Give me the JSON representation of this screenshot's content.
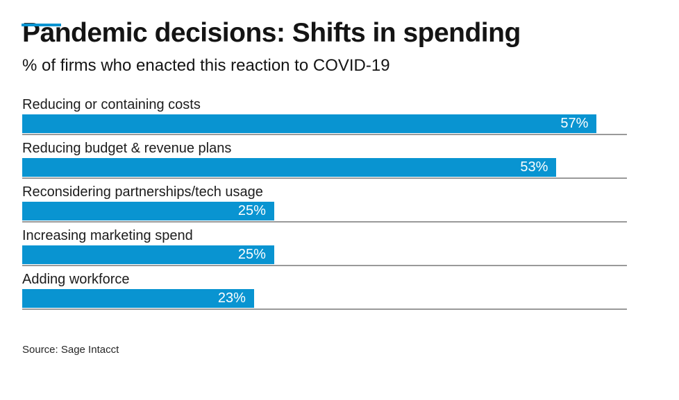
{
  "accent_color": "#0994d1",
  "header": {
    "title": "Pandemic decisions: Shifts in spending",
    "subtitle": "% of firms who enacted this reaction to COVID-19"
  },
  "chart_data": {
    "type": "bar",
    "orientation": "horizontal",
    "title": "Pandemic decisions: Shifts in spending",
    "subtitle": "% of firms who enacted this reaction to COVID-19",
    "categories": [
      "Reducing or containing costs",
      "Reducing budget & revenue plans",
      "Reconsidering partnerships/tech usage",
      "Increasing marketing spend",
      "Adding workforce"
    ],
    "values": [
      57,
      53,
      25,
      25,
      23
    ],
    "value_labels": [
      "57%",
      "53%",
      "25%",
      "25%",
      "23%"
    ],
    "xlabel": "",
    "ylabel": "",
    "xlim": [
      0,
      60
    ],
    "bar_color": "#0994d1",
    "separator_color": "#999999",
    "grid": false,
    "legend": false,
    "value_label_position": "inside-right"
  },
  "footer": {
    "source": "Source: Sage Intacct"
  }
}
